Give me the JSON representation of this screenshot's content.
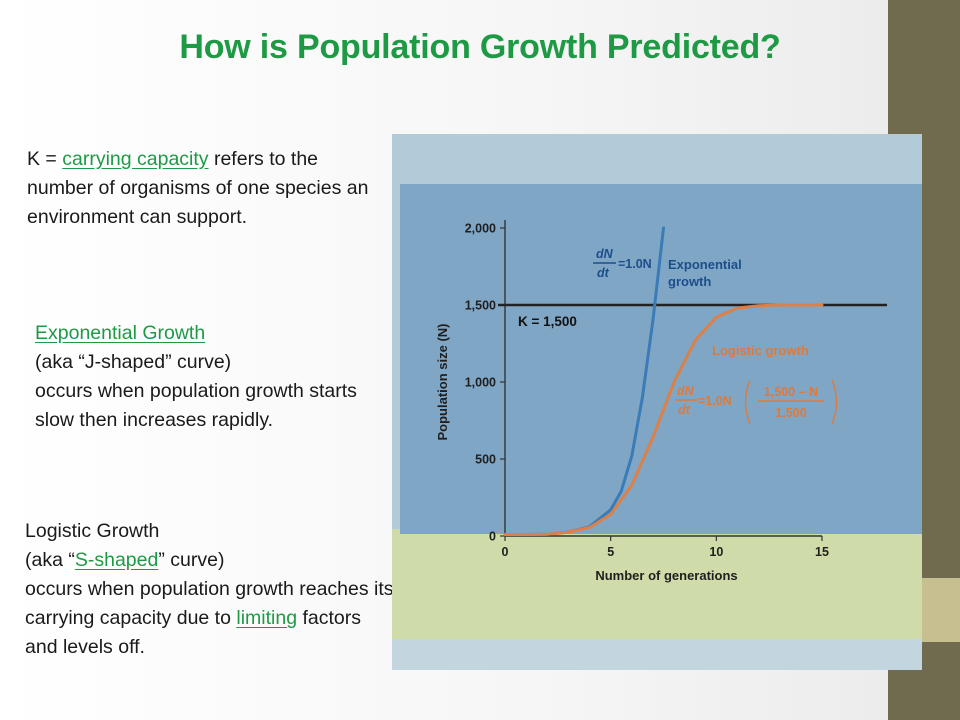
{
  "slide": {
    "title": "How is Population Growth Predicted?",
    "p1": {
      "pre": "K = ",
      "link": "carrying capacity",
      "post": " refers to the number of organisms of one species an environment can support."
    },
    "p2": {
      "heading": "Exponential Growth",
      "line1": "(aka “J-shaped” curve)",
      "line2": "occurs when population growth starts slow then increases rapidly."
    },
    "p3": {
      "heading": "Logistic Growth",
      "aka_pre": "(aka “",
      "aka_link": "S-shaped",
      "aka_post": "” curve)",
      "body_pre": "occurs when population growth reaches its carrying capacity due to ",
      "body_link": "limiting",
      "body_post": " factors and levels off."
    },
    "colors": {
      "title": "#1e9a45",
      "sidebar": "#706b4f",
      "accent": "#c7bf90"
    }
  },
  "chart_data": {
    "type": "line",
    "xlabel": "Number of generations",
    "ylabel": "Population size (N)",
    "xlim": [
      0,
      15
    ],
    "ylim": [
      0,
      2000
    ],
    "xticks": [
      "0",
      "5",
      "10",
      "15"
    ],
    "yticks": [
      "0",
      "500",
      "1,000",
      "1,500",
      "2,000"
    ],
    "k_label": "K = 1,500",
    "k_value": 1500,
    "exp_label_line1": "Exponential",
    "exp_label_line2": "growth",
    "exp_eq_num": "dN",
    "exp_eq_den": "dt",
    "exp_eq_rhs": "=1.0N",
    "log_label": "Logistic growth",
    "log_eq_num": "dN",
    "log_eq_den": "dt",
    "log_eq_rhs": "=1.0N",
    "log_frac_num": "1,500 – N",
    "log_frac_den": "1,500",
    "series": [
      {
        "name": "Exponential growth",
        "color": "#3a7bb8",
        "x": [
          0,
          1,
          2,
          3,
          4,
          5,
          5.5,
          6,
          6.5,
          7,
          7.5
        ],
        "y": [
          10,
          10,
          12,
          25,
          60,
          170,
          290,
          520,
          900,
          1400,
          2000
        ]
      },
      {
        "name": "Logistic growth",
        "color": "#dd8048",
        "x": [
          0,
          1,
          2,
          3,
          4,
          5,
          6,
          7,
          8,
          9,
          10,
          11,
          12,
          13,
          14,
          15
        ],
        "y": [
          10,
          10,
          12,
          25,
          55,
          140,
          330,
          640,
          1000,
          1270,
          1420,
          1480,
          1495,
          1500,
          1500,
          1500
        ]
      }
    ],
    "colors": {
      "panel": "#b3cbd8",
      "plot_bg": "#7fa6c5",
      "bottom_band": "#cfdba9",
      "k_line": "#222222",
      "exp": "#3a7bb8",
      "log": "#dd8048"
    }
  }
}
